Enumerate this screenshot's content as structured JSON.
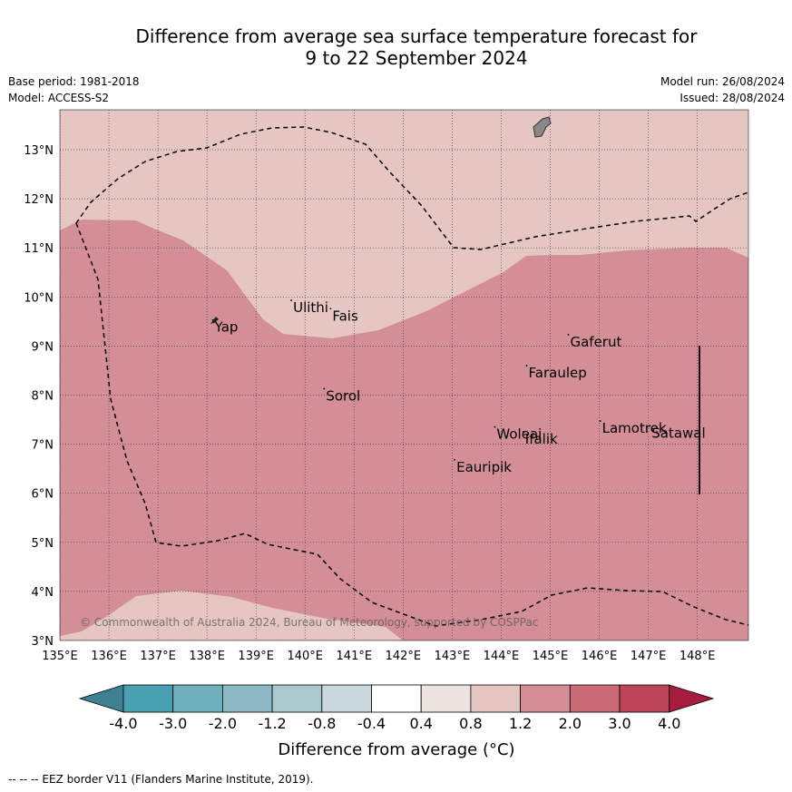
{
  "title": {
    "line1": "Difference from average sea surface temperature forecast for",
    "line2": "9 to 22 September 2024"
  },
  "meta": {
    "base_period": "Base period: 1981-2018",
    "model": "Model: ACCESS-S2",
    "model_run": "Model run: 26/08/2024",
    "issued": "Issued: 28/08/2024"
  },
  "map": {
    "lon_range": [
      135,
      149
    ],
    "lat_range": [
      3,
      13.8
    ],
    "lon_ticks": [
      "135°E",
      "136°E",
      "137°E",
      "138°E",
      "139°E",
      "140°E",
      "141°E",
      "142°E",
      "143°E",
      "144°E",
      "145°E",
      "146°E",
      "147°E",
      "148°E"
    ],
    "lat_ticks": [
      "3°N",
      "4°N",
      "5°N",
      "6°N",
      "7°N",
      "8°N",
      "9°N",
      "10°N",
      "11°N",
      "12°N",
      "13°N"
    ],
    "grid": true,
    "places": [
      {
        "name": "Ulithi",
        "label": "Ulithi",
        "lon": 139.72,
        "lat": 9.93
      },
      {
        "name": "Fais",
        "label": "Fais",
        "lon": 140.52,
        "lat": 9.76
      },
      {
        "name": "Yap",
        "label": "Yap",
        "lon": 138.12,
        "lat": 9.53
      },
      {
        "name": "Gaferut",
        "label": "Gaferut",
        "lon": 145.37,
        "lat": 9.23
      },
      {
        "name": "Faraulep",
        "label": "Faraulep",
        "lon": 144.52,
        "lat": 8.6
      },
      {
        "name": "Sorol",
        "label": "Sorol",
        "lon": 140.39,
        "lat": 8.13
      },
      {
        "name": "Lamotrek",
        "label": "Lamotrek",
        "lon": 146.02,
        "lat": 7.47
      },
      {
        "name": "Woleai",
        "label": "Woleai",
        "lon": 143.87,
        "lat": 7.35
      },
      {
        "name": "Ifalik",
        "label": "Ifalik",
        "lon": 144.45,
        "lat": 7.25
      },
      {
        "name": "Satawal",
        "label": "Satawal",
        "lon": 147.03,
        "lat": 7.37
      },
      {
        "name": "Eauripik",
        "label": "Eauripik",
        "lon": 143.05,
        "lat": 6.68
      }
    ],
    "copyright": "© Commonwealth of Australia 2024, Bureau of Meteorology, supported by COSPPac",
    "colors": {
      "anomaly_0_8_to_1_2": "#e6c6c3",
      "anomaly_1_2_to_2_0": "#d48e98",
      "land": "#888888",
      "grid": "#444444"
    }
  },
  "colorbar": {
    "ticks": [
      "-4.0",
      "-3.0",
      "-2.0",
      "-1.2",
      "-0.8",
      "-0.4",
      "0.4",
      "0.8",
      "1.2",
      "2.0",
      "3.0",
      "4.0"
    ],
    "colors": [
      "#3d8291",
      "#48a0b2",
      "#6fb0bd",
      "#8db9c5",
      "#a9c9cf",
      "#c9d8dc",
      "#ffffff",
      "#ede4e2",
      "#e6c6c3",
      "#d48e98",
      "#c96a76",
      "#be4459",
      "#a51c3e"
    ],
    "title": "Difference from average (°C)"
  },
  "footnote": "--  --  -- EEZ border V11 (Flanders Marine Institute, 2019)."
}
